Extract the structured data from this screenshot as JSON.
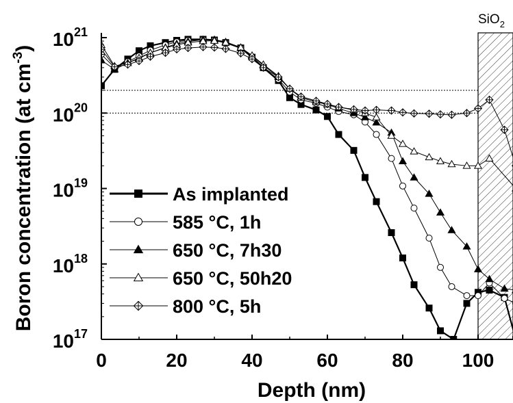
{
  "chart_data": {
    "type": "line",
    "xlabel": "Depth (nm)",
    "ylabel": "Boron concentration (at cm",
    "ylabel_sup": "-3",
    "ylabel_close": ")",
    "yscale": "log",
    "xlim": [
      0,
      110
    ],
    "ylim": [
      1e+17,
      1e+21
    ],
    "x_ticks": [
      0,
      20,
      40,
      60,
      80,
      100
    ],
    "x_tick_labels": [
      "0",
      "20",
      "40",
      "60",
      "80",
      "100"
    ],
    "y_ticks": [
      1e+17,
      1e+18,
      1e+19,
      1e+20,
      1e+21
    ],
    "y_tick_base": "10",
    "y_tick_exponents": [
      "17",
      "18",
      "19",
      "20",
      "21"
    ],
    "region_label": "SiO",
    "region_label_sub": "2",
    "region_start": 100,
    "reference_lines": [
      1e+20,
      2e+20
    ],
    "legend_position": "left",
    "series": [
      {
        "name": "As implanted",
        "marker": "square-filled",
        "color": "#000000",
        "x": [
          0,
          3.5,
          7,
          10,
          13,
          17,
          20,
          23,
          27,
          30,
          33,
          37,
          40,
          43,
          47,
          50,
          53,
          57,
          60,
          63,
          67,
          70,
          73,
          77,
          80,
          83,
          87,
          90,
          93.5,
          97,
          100,
          103,
          107,
          110
        ],
        "y": [
          2.3e+20,
          3.8e+20,
          5.2e+20,
          6.7e+20,
          7.8e+20,
          8.6e+20,
          9.2e+20,
          9.5e+20,
          9.5e+20,
          9.3e+20,
          8.6e+20,
          7.3e+20,
          5.5e+20,
          4e+20,
          2.7e+20,
          1.6e+20,
          1.3e+20,
          1.1e+20,
          9e+19,
          5.2e+19,
          3.2e+19,
          1.4e+19,
          6.7e+18,
          2.6e+18,
          1.2e+18,
          5.3e+17,
          2.6e+17,
          1.3e+17,
          1e+17,
          3e+17,
          4.2e+17,
          4.5e+17,
          3.6e+17,
          1e+17
        ]
      },
      {
        "name": "585 °C, 1h",
        "marker": "circle-open",
        "color": "#000000",
        "x": [
          0,
          3.5,
          7,
          10,
          13,
          17,
          20,
          23,
          27,
          30,
          33,
          37,
          40,
          43,
          47,
          50,
          53,
          57,
          60,
          63,
          67,
          70,
          73,
          77,
          80,
          83,
          87,
          90,
          93,
          97,
          100,
          103,
          107,
          110
        ],
        "y": [
          6e+20,
          4e+20,
          4.8e+20,
          5.7e+20,
          6.8e+20,
          8e+20,
          8.8e+20,
          9.2e+20,
          9.4e+20,
          9.3e+20,
          8.6e+20,
          7.3e+20,
          5.5e+20,
          4e+20,
          2.8e+20,
          1.9e+20,
          1.5e+20,
          1.35e+20,
          1.2e+20,
          1.05e+20,
          9.5e+19,
          7.6e+19,
          5.2e+19,
          2.5e+19,
          1.08e+19,
          5.5e+18,
          2.2e+18,
          9e+17,
          5e+17,
          3.8e+17,
          3.8e+17,
          5.6e+17,
          3.5e+17,
          3e+17
        ]
      },
      {
        "name": "650 °C, 7h30",
        "marker": "triangle-filled",
        "color": "#000000",
        "x": [
          0,
          3.5,
          7,
          10,
          13,
          17,
          20,
          23,
          27,
          30,
          33,
          37,
          40,
          43,
          47,
          50,
          53,
          57,
          60,
          63,
          67,
          70,
          73,
          77,
          80,
          83,
          87,
          90,
          93,
          97,
          100,
          103,
          107,
          110
        ],
        "y": [
          5e+20,
          3.8e+20,
          4.6e+20,
          5.3e+20,
          6.3e+20,
          7.4e+20,
          8.3e+20,
          8.9e+20,
          9.4e+20,
          9.4e+20,
          8.8e+20,
          7.4e+20,
          5.7e+20,
          4.3e+20,
          3e+20,
          2.1e+20,
          1.65e+20,
          1.45e+20,
          1.3e+20,
          1.15e+20,
          1e+20,
          8.8e+19,
          7.5e+19,
          5.5e+19,
          2.3e+19,
          1.4e+19,
          8.5e+18,
          4.8e+18,
          2.8e+18,
          1.7e+18,
          8.5e+17,
          6.3e+17,
          4.7e+17,
          4.5e+17
        ]
      },
      {
        "name": "650 °C, 50h20",
        "marker": "triangle-open",
        "color": "#000000",
        "x": [
          0,
          3.5,
          7,
          10,
          13,
          17,
          20,
          23,
          27,
          30,
          33,
          37,
          40,
          43,
          47,
          50,
          53,
          57,
          60,
          63,
          67,
          70,
          73,
          77,
          80,
          83,
          87,
          90,
          93,
          97,
          100,
          103,
          110
        ],
        "y": [
          8e+20,
          4.2e+20,
          4.6e+20,
          5.4e+20,
          6.3e+20,
          7.3e+20,
          8e+20,
          8.6e+20,
          9e+20,
          9.1e+20,
          8.6e+20,
          7.4e+20,
          5.8e+20,
          4.4e+20,
          3.1e+20,
          2.1e+20,
          1.6e+20,
          1.4e+20,
          1.3e+20,
          1.2e+20,
          1.1e+20,
          1e+20,
          8.8e+19,
          5e+19,
          3.9e+19,
          3.1e+19,
          2.6e+19,
          2.3e+19,
          2.1e+19,
          2e+19,
          2e+19,
          2.5e+19,
          1e+19
        ]
      },
      {
        "name": "800 °C, 5h",
        "marker": "crossed-diamond",
        "color": "#000000",
        "x": [
          0,
          3.5,
          7,
          10,
          13,
          17,
          20,
          23,
          27,
          30,
          33,
          37,
          40,
          43,
          47,
          50,
          53,
          57,
          60,
          63,
          67,
          70,
          73,
          77,
          80,
          83,
          87,
          90,
          93,
          97,
          100,
          103,
          107,
          110
        ],
        "y": [
          7e+20,
          4.1e+20,
          4.4e+20,
          4.9e+20,
          5.6e+20,
          6.3e+20,
          7e+20,
          7.3e+20,
          7.5e+20,
          7.4e+20,
          7.1e+20,
          6.2e+20,
          5.2e+20,
          4e+20,
          3e+20,
          2.1e+20,
          1.65e+20,
          1.45e+20,
          1.32e+20,
          1.2e+20,
          1.12e+20,
          1.08e+20,
          1.1e+20,
          1.08e+20,
          1.02e+20,
          9.9e+19,
          9.8e+19,
          9.6e+19,
          9.5e+19,
          1e+20,
          1.15e+20,
          1.5e+20,
          6e+19,
          2e+19
        ]
      }
    ]
  }
}
